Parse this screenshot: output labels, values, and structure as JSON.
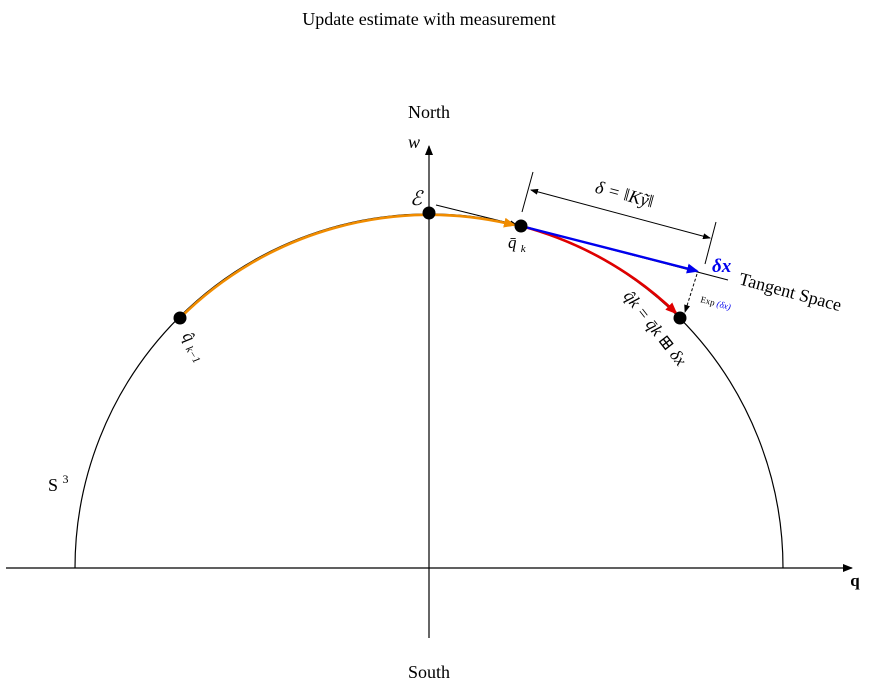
{
  "title": "Update estimate with measurement",
  "axes": {
    "north": "North",
    "south": "South",
    "w_axis": "w",
    "q_axis": "q"
  },
  "sphere_label": {
    "base": "S",
    "sup": "3"
  },
  "points": {
    "origin": "ℰ",
    "prev": {
      "base": "q̂",
      "sub": "k−1"
    },
    "pred": {
      "base": "q̄",
      "sub": "k"
    },
    "updated": "q̂k = q̄k ⊞ δx"
  },
  "tangent": {
    "label": "Tangent Space",
    "delta": "δ = ‖Kỹ‖",
    "dx": "δx",
    "exp": {
      "text": "Exp",
      "arg": "(δx)"
    }
  },
  "colors": {
    "orange": "#f08c00",
    "red": "#e00000",
    "blue": "#0000ee",
    "black": "#000000"
  }
}
